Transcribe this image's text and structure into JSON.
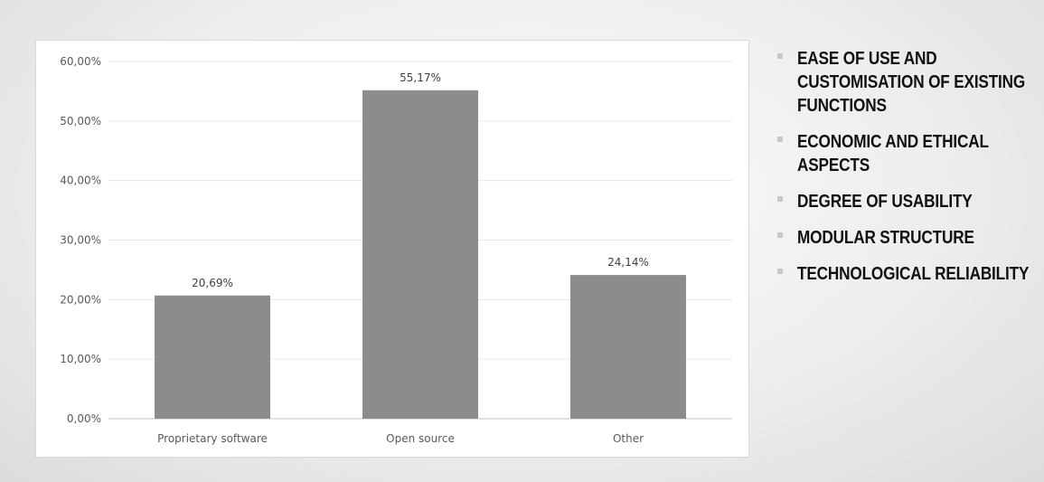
{
  "chart_data": {
    "type": "bar",
    "categories": [
      "Proprietary software",
      "Open source",
      "Other"
    ],
    "values": [
      20.69,
      55.17,
      24.14
    ],
    "value_labels": [
      "20,69%",
      "55,17%",
      "24,14%"
    ],
    "ylim": [
      0,
      60
    ],
    "y_ticks": [
      0,
      10,
      20,
      30,
      40,
      50,
      60
    ],
    "y_tick_labels": [
      "0,00%",
      "10,00%",
      "20,00%",
      "30,00%",
      "40,00%",
      "50,00%",
      "60,00%"
    ],
    "bar_color": "#8c8c8c",
    "grid": true,
    "legend": false
  },
  "bullets": [
    "EASE OF USE AND CUSTOMISATION  OF EXISTING FUNCTIONS",
    "ECONOMIC AND ETHICAL ASPECTS",
    "DEGREE OF USABILITY",
    "MODULAR STRUCTURE",
    "TECHNOLOGICAL RELIABILITY"
  ]
}
